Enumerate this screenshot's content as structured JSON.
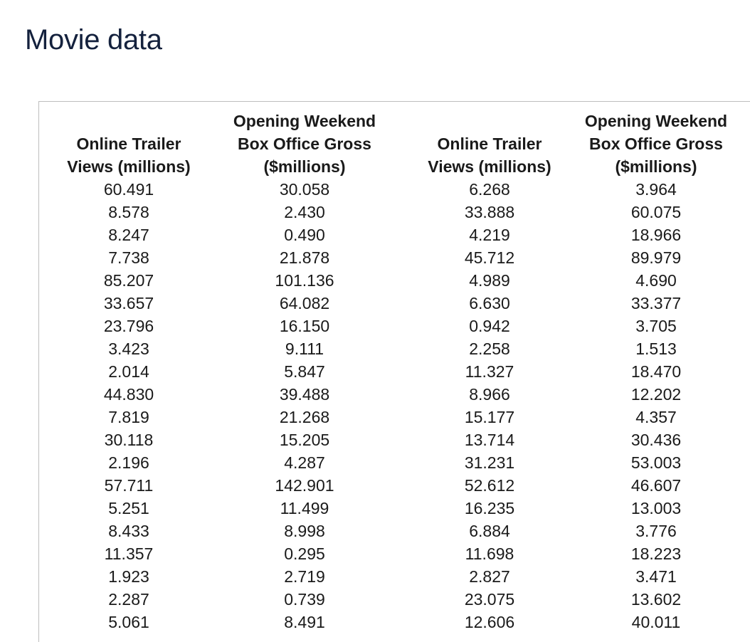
{
  "title": "Movie data",
  "table": {
    "headers": [
      [
        "Online Trailer",
        "Views (millions)"
      ],
      [
        "Opening Weekend",
        "Box Office Gross",
        "($millions)"
      ],
      [
        "Online Trailer",
        "Views (millions)"
      ],
      [
        "Opening Weekend",
        "Box Office Gross",
        "($millions)"
      ]
    ],
    "rows": [
      [
        "60.491",
        "30.058",
        "6.268",
        "3.964"
      ],
      [
        "8.578",
        "2.430",
        "33.888",
        "60.075"
      ],
      [
        "8.247",
        "0.490",
        "4.219",
        "18.966"
      ],
      [
        "7.738",
        "21.878",
        "45.712",
        "89.979"
      ],
      [
        "85.207",
        "101.136",
        "4.989",
        "4.690"
      ],
      [
        "33.657",
        "64.082",
        "6.630",
        "33.377"
      ],
      [
        "23.796",
        "16.150",
        "0.942",
        "3.705"
      ],
      [
        "3.423",
        "9.111",
        "2.258",
        "1.513"
      ],
      [
        "2.014",
        "5.847",
        "11.327",
        "18.470"
      ],
      [
        "44.830",
        "39.488",
        "8.966",
        "12.202"
      ],
      [
        "7.819",
        "21.268",
        "15.177",
        "4.357"
      ],
      [
        "30.118",
        "15.205",
        "13.714",
        "30.436"
      ],
      [
        "2.196",
        "4.287",
        "31.231",
        "53.003"
      ],
      [
        "57.711",
        "142.901",
        "52.612",
        "46.607"
      ],
      [
        "5.251",
        "11.499",
        "16.235",
        "13.003"
      ],
      [
        "8.433",
        "8.998",
        "6.884",
        "3.776"
      ],
      [
        "11.357",
        "0.295",
        "11.698",
        "18.223"
      ],
      [
        "1.923",
        "2.719",
        "2.827",
        "3.471"
      ],
      [
        "2.287",
        "0.739",
        "23.075",
        "13.602"
      ],
      [
        "5.061",
        "8.491",
        "12.606",
        "40.011"
      ]
    ]
  },
  "colors": {
    "title": "#14213d",
    "border": "#bdbdbd"
  }
}
